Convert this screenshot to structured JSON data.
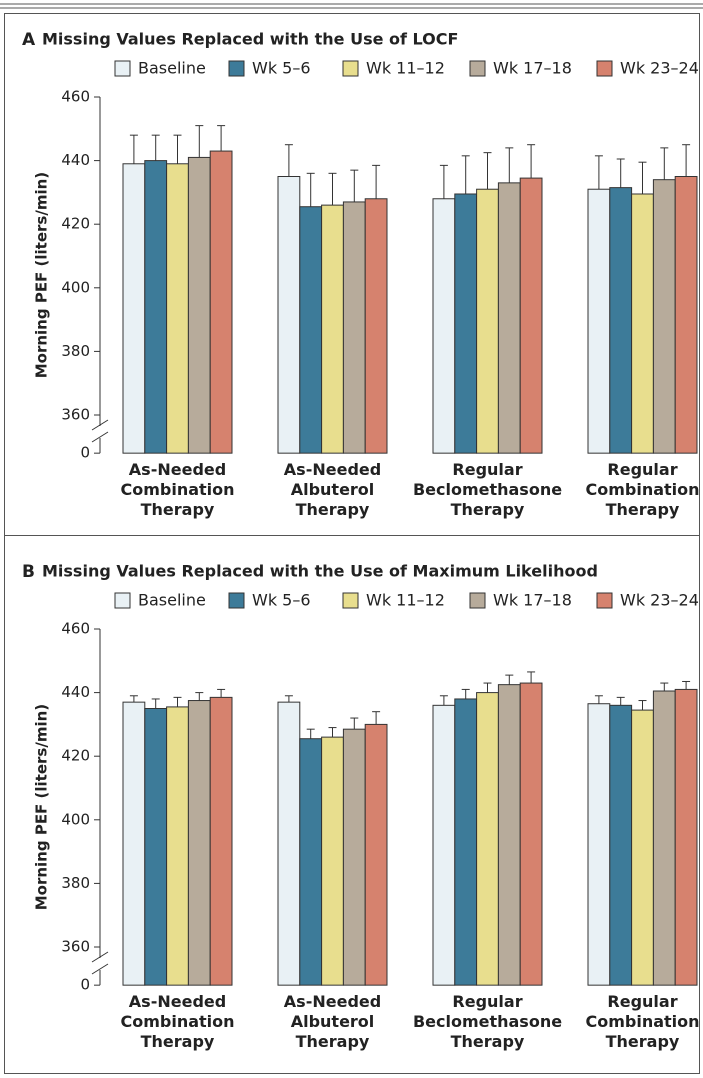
{
  "chart_data": [
    {
      "type": "bar",
      "panel": "A",
      "title": "Missing Values Replaced with the Use of LOCF",
      "ylabel": "Morning PEF (liters/min)",
      "categories": [
        [
          "As-Needed",
          "Combination",
          "Therapy"
        ],
        [
          "As-Needed",
          "Albuterol",
          "Therapy"
        ],
        [
          "Regular",
          "Beclomethasone",
          "Therapy"
        ],
        [
          "Regular",
          "Combination",
          "Therapy"
        ]
      ],
      "series": [
        {
          "name": "Baseline",
          "color": "#e9f1f5",
          "values": [
            439,
            435,
            428,
            431
          ],
          "errors": [
            9,
            10,
            10.5,
            10.5
          ]
        },
        {
          "name": "Wk 5–6",
          "color": "#3d7b99",
          "values": [
            440,
            425.5,
            429.5,
            431.5
          ],
          "errors": [
            8,
            10.5,
            12,
            9
          ]
        },
        {
          "name": "Wk 11–12",
          "color": "#e8de8e",
          "values": [
            439,
            426,
            431,
            429.5
          ],
          "errors": [
            9,
            10,
            11.5,
            10
          ]
        },
        {
          "name": "Wk 17–18",
          "color": "#b7ab9b",
          "values": [
            441,
            427,
            433,
            434
          ],
          "errors": [
            10,
            10,
            11,
            10
          ]
        },
        {
          "name": "Wk 23–24",
          "color": "#d6826e",
          "values": [
            443,
            428,
            434.5,
            435
          ],
          "errors": [
            8,
            10.5,
            10.5,
            10
          ]
        }
      ],
      "ylim": [
        348,
        460
      ],
      "yticks": [
        0,
        360,
        380,
        400,
        420,
        440,
        460
      ],
      "axis_break": true
    },
    {
      "type": "bar",
      "panel": "B",
      "title": "Missing Values Replaced with the Use of Maximum Likelihood",
      "ylabel": "Morning PEF (liters/min)",
      "categories": [
        [
          "As-Needed",
          "Combination",
          "Therapy"
        ],
        [
          "As-Needed",
          "Albuterol",
          "Therapy"
        ],
        [
          "Regular",
          "Beclomethasone",
          "Therapy"
        ],
        [
          "Regular",
          "Combination",
          "Therapy"
        ]
      ],
      "series": [
        {
          "name": "Baseline",
          "color": "#e9f1f5",
          "values": [
            437,
            437,
            436,
            436.5
          ],
          "errors": [
            2,
            2,
            3,
            2.5
          ]
        },
        {
          "name": "Wk 5–6",
          "color": "#3d7b99",
          "values": [
            435,
            425.5,
            438,
            436
          ],
          "errors": [
            3,
            3,
            3,
            2.5
          ]
        },
        {
          "name": "Wk 11–12",
          "color": "#e8de8e",
          "values": [
            435.5,
            426,
            440,
            434.5
          ],
          "errors": [
            3,
            3,
            3,
            3
          ]
        },
        {
          "name": "Wk 17–18",
          "color": "#b7ab9b",
          "values": [
            437.5,
            428.5,
            442.5,
            440.5
          ],
          "errors": [
            2.5,
            3.5,
            3,
            2.5
          ]
        },
        {
          "name": "Wk 23–24",
          "color": "#d6826e",
          "values": [
            438.5,
            430,
            443,
            441
          ],
          "errors": [
            2.5,
            4,
            3.5,
            2.5
          ]
        }
      ],
      "ylim": [
        348,
        460
      ],
      "yticks": [
        0,
        360,
        380,
        400,
        420,
        440,
        460
      ],
      "axis_break": true
    }
  ]
}
